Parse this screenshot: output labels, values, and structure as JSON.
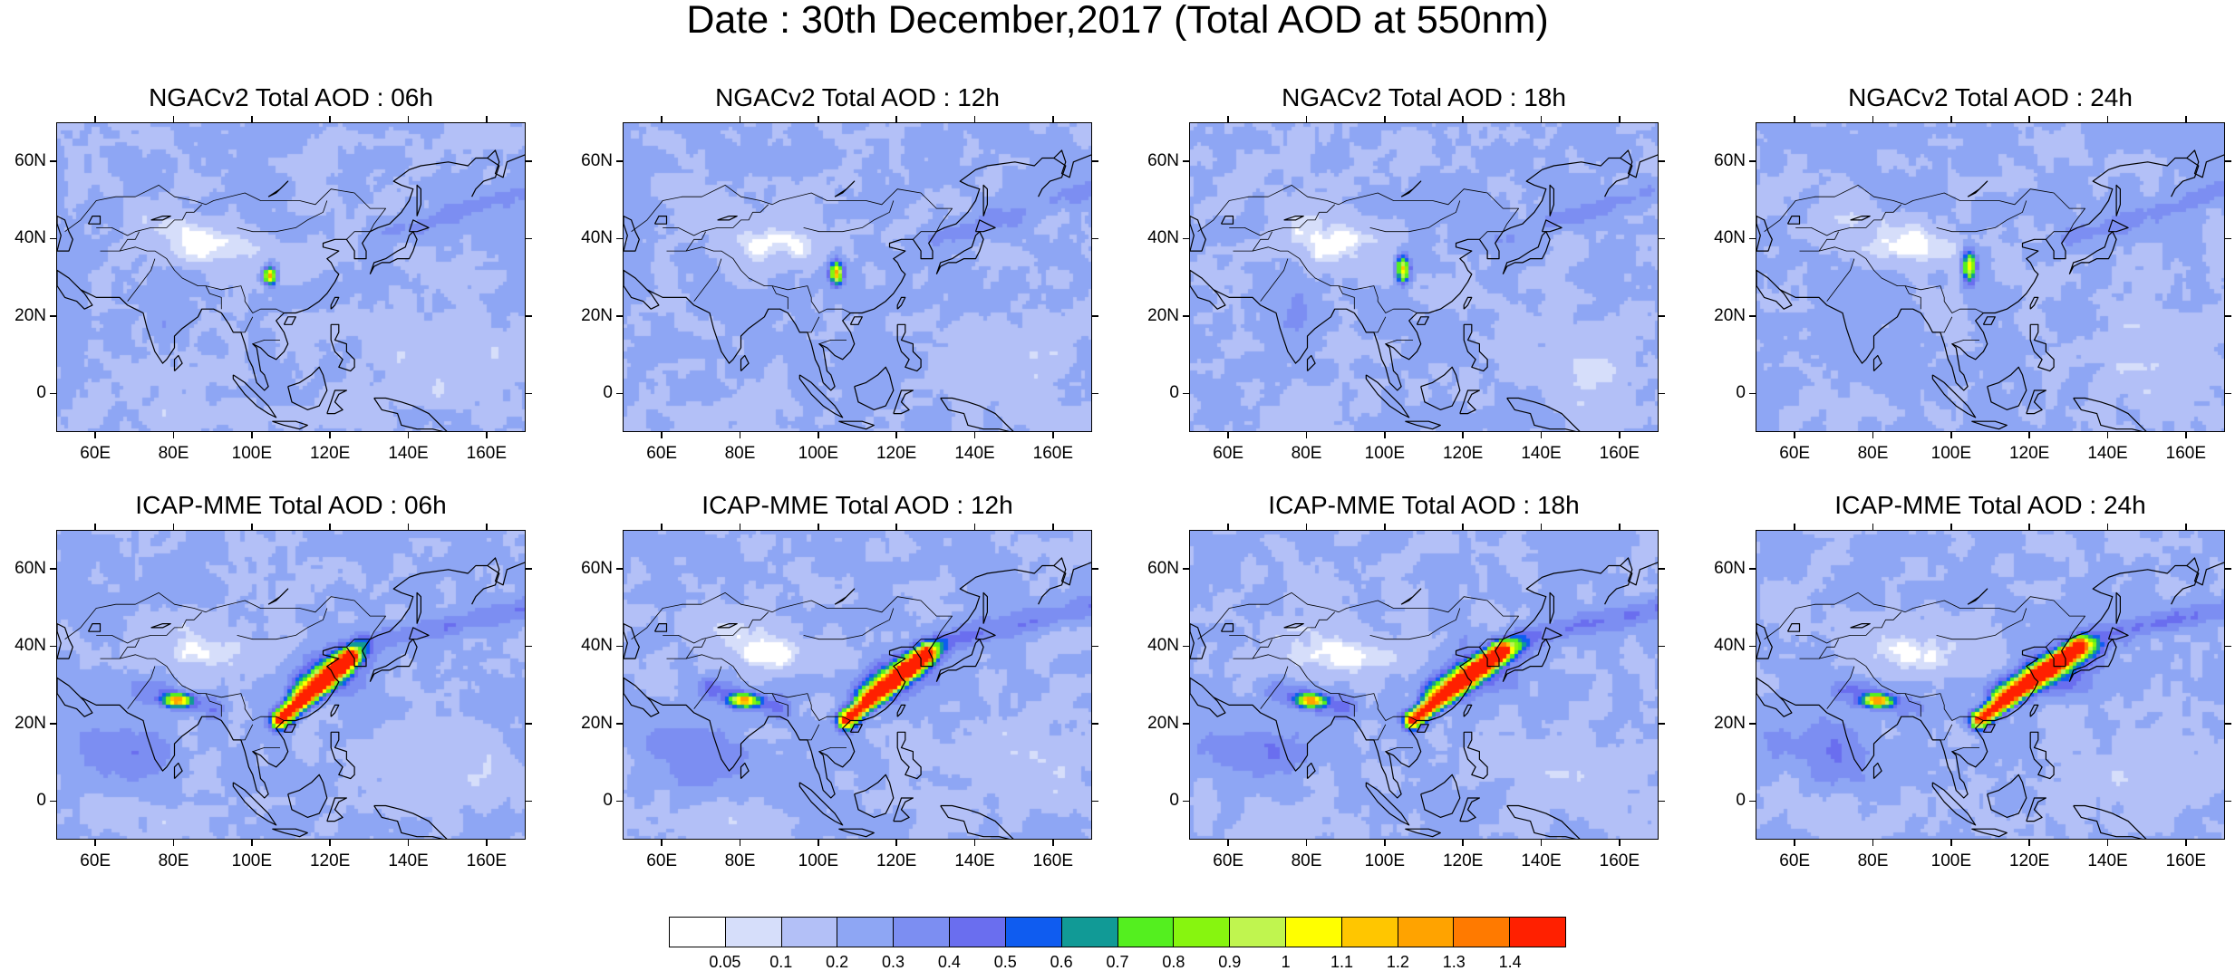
{
  "title": "Date : 30th December,2017 (Total AOD at 550nm)",
  "colors": {
    "land_outline": "#000000",
    "background": "#ffffff",
    "colorbar": [
      "#ffffff",
      "#d6defa",
      "#b3c0f7",
      "#8ea6f4",
      "#7c8ef2",
      "#6a6eef",
      "#0f5cf0",
      "#119a96",
      "#54ef1f",
      "#87f50f",
      "#c0f54f",
      "#ffff00",
      "#ffc600",
      "#ffa300",
      "#ff7a00",
      "#ff2000"
    ]
  },
  "axes": {
    "lat_ticks": [
      "60N",
      "40N",
      "20N",
      "0"
    ],
    "lon_ticks": [
      "60E",
      "80E",
      "100E",
      "120E",
      "140E",
      "160E"
    ]
  },
  "colorbar": {
    "labels": [
      "0.05",
      "0.1",
      "0.2",
      "0.3",
      "0.4",
      "0.5",
      "0.6",
      "0.7",
      "0.8",
      "0.9",
      "1",
      "1.1",
      "1.2",
      "1.3",
      "1.4"
    ]
  },
  "panels": [
    {
      "title": "NGACv2 Total AOD : 06h",
      "model": "NGACv2",
      "hour": "06h"
    },
    {
      "title": "NGACv2 Total AOD : 12h",
      "model": "NGACv2",
      "hour": "12h"
    },
    {
      "title": "NGACv2 Total AOD : 18h",
      "model": "NGACv2",
      "hour": "18h"
    },
    {
      "title": "NGACv2 Total AOD : 24h",
      "model": "NGACv2",
      "hour": "24h"
    },
    {
      "title": "ICAP-MME Total AOD : 06h",
      "model": "ICAP-MME",
      "hour": "06h"
    },
    {
      "title": "ICAP-MME Total AOD : 12h",
      "model": "ICAP-MME",
      "hour": "12h"
    },
    {
      "title": "ICAP-MME Total AOD : 18h",
      "model": "ICAP-MME",
      "hour": "18h"
    },
    {
      "title": "ICAP-MME Total AOD : 24h",
      "model": "ICAP-MME",
      "hour": "24h"
    }
  ]
}
